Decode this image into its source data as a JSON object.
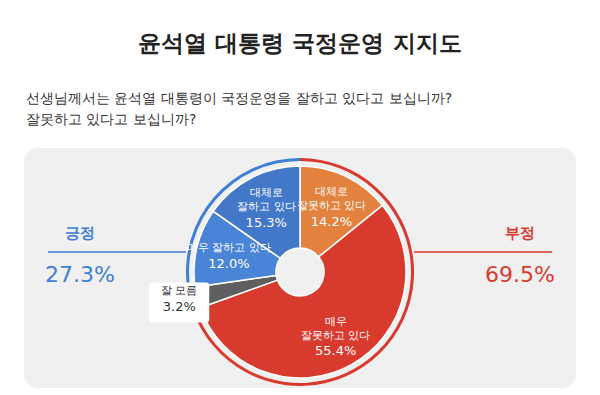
{
  "chart_data": {
    "type": "donut",
    "title": "윤석열 대통령 국정운영 지지도",
    "subtitle": [
      "선생님께서는 윤석열 대통령이 국정운영을 잘하고 있다고 보십니까?",
      "잘못하고 있다고 보십니까?"
    ],
    "categories": [
      "대체로 잘못하고 있다",
      "매우 잘못하고 있다",
      "잘 모름",
      "매우 잘하고 있다",
      "대체로 잘하고 있다"
    ],
    "values": [
      14.2,
      55.4,
      3.2,
      12.0,
      15.3
    ],
    "value_labels": [
      "14.2%",
      "55.4%",
      "3.2%",
      "12.0%",
      "15.3%"
    ],
    "colors": [
      "#e3823f",
      "#d93a2e",
      "#5f5f5f",
      "#4a84d6",
      "#4378c9"
    ],
    "data_labels": true,
    "summary": [
      {
        "name": "긍정",
        "value": 27.3,
        "label": "27.3%",
        "color": "#3f7fd6"
      },
      {
        "name": "부정",
        "value": 69.5,
        "label": "69.5%",
        "color": "#d93a2e"
      }
    ]
  }
}
